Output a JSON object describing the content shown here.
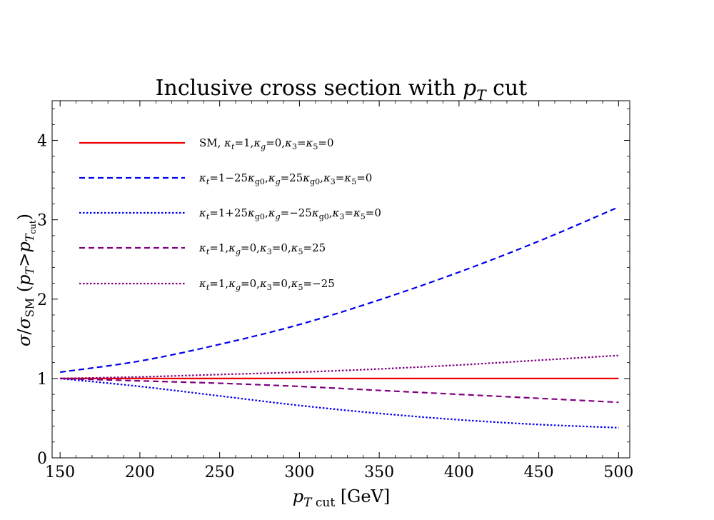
{
  "chart_data": {
    "type": "line",
    "title": "Inclusive cross section with p_T cut",
    "xlabel": "p_T cut [GeV]",
    "ylabel": "σ/σ_SM (p_T>p_T cut)",
    "xlim": [
      145,
      507
    ],
    "ylim": [
      0,
      4.5
    ],
    "xticks": [
      150,
      200,
      250,
      300,
      350,
      400,
      450,
      500
    ],
    "yticks": [
      0,
      1,
      2,
      3,
      4
    ],
    "xtick_labels": [
      "150",
      "200",
      "250",
      "300",
      "350",
      "400",
      "450",
      "500"
    ],
    "ytick_labels": [
      "0",
      "1",
      "2",
      "3",
      "4"
    ],
    "legend_position": "top-left",
    "grid": false,
    "x": [
      150,
      200,
      250,
      300,
      350,
      400,
      450,
      500
    ],
    "series": [
      {
        "name": "SM, κ_t=1,κ_g=0,κ_3=κ_5=0",
        "color": "#ee0000",
        "style": "solid",
        "values": [
          1.0,
          1.0,
          1.0,
          1.0,
          1.0,
          1.0,
          1.0,
          1.0
        ]
      },
      {
        "name": "κ_t=1−25κ_g0,κ_g=25κ_g0,κ_3=κ_5=0",
        "color": "#0000ee",
        "style": "dashed",
        "values": [
          1.08,
          1.22,
          1.43,
          1.68,
          1.99,
          2.34,
          2.73,
          3.16
        ]
      },
      {
        "name": "κ_t=1+25κ_g0,κ_g=−25κ_g0,κ_3=κ_5=0",
        "color": "#0000ee",
        "style": "dotted",
        "values": [
          1.0,
          0.9,
          0.78,
          0.66,
          0.56,
          0.48,
          0.42,
          0.38
        ]
      },
      {
        "name": "κ_t=1,κ_g=0,κ_3=0,κ_5=25",
        "color": "#800080",
        "style": "dashed",
        "values": [
          1.0,
          0.97,
          0.94,
          0.9,
          0.85,
          0.8,
          0.75,
          0.7
        ]
      },
      {
        "name": "κ_t=1,κ_g=0,κ_3=0,κ_5=−25",
        "color": "#800080",
        "style": "dotted",
        "values": [
          1.0,
          1.02,
          1.05,
          1.08,
          1.12,
          1.17,
          1.23,
          1.29
        ]
      }
    ]
  }
}
